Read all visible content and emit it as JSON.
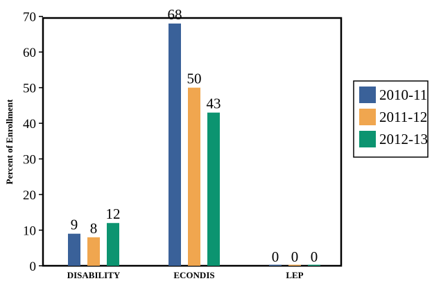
{
  "chart_data": {
    "type": "bar",
    "ylabel": "Percent of Enrollment",
    "xlabel": "",
    "ylim": [
      0,
      70
    ],
    "yticks": [
      0,
      10,
      20,
      30,
      40,
      50,
      60,
      70
    ],
    "categories": [
      "DISABILITY",
      "ECONDIS",
      "LEP"
    ],
    "series": [
      {
        "name": "2010-11",
        "color": "#3a6199",
        "values": [
          9,
          68,
          0
        ],
        "labels": [
          "9",
          "68",
          "0"
        ]
      },
      {
        "name": "2011-12",
        "color": "#f0a64f",
        "values": [
          8,
          50,
          0
        ],
        "labels": [
          "8",
          "50",
          "0"
        ]
      },
      {
        "name": "2012-13",
        "color": "#0c9470",
        "values": [
          12,
          43,
          0
        ],
        "labels": [
          "12",
          "43",
          "0"
        ]
      }
    ],
    "legend_position": "right",
    "grid": false
  }
}
